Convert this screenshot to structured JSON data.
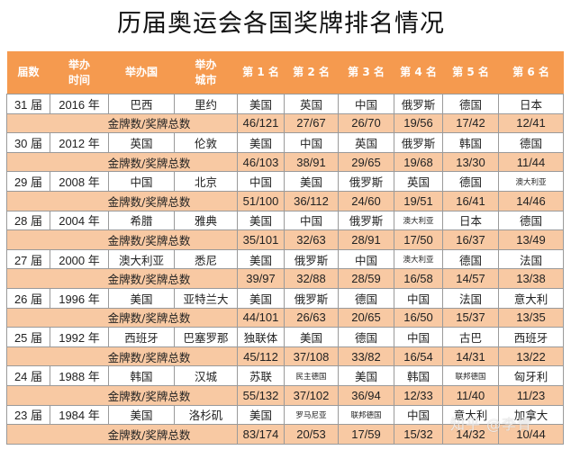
{
  "title": "历届奥运会各国奖牌排名情况",
  "headers": [
    "届数",
    "举办\n时间",
    "举办国",
    "举办\n城市",
    "第 1 名",
    "第 2 名",
    "第 3 名",
    "第 4 名",
    "第 5 名",
    "第 6 名"
  ],
  "header_lines": {
    "session": "届数",
    "time_1": "举办",
    "time_2": "时间",
    "country": "举办国",
    "city_1": "举办",
    "city_2": "城市",
    "rank1": "第 1 名",
    "rank2": "第 2 名",
    "rank3": "第 3 名",
    "rank4": "第 4 名",
    "rank5": "第 5 名",
    "rank6": "第 6 名"
  },
  "medal_label": "金牌数/奖牌总数",
  "colors": {
    "header_bg": "#f59a4f",
    "medal_row_bg": "#f8c9a3",
    "border": "#9a9a9a"
  },
  "games": [
    {
      "session": "31 届",
      "year": "2016 年",
      "host_country": "巴西",
      "host_city": "里约",
      "ranking": [
        "美国",
        "英国",
        "中国",
        "俄罗斯",
        "德国",
        "日本"
      ],
      "medals": [
        "46/121",
        "27/67",
        "26/70",
        "19/56",
        "17/42",
        "12/41"
      ]
    },
    {
      "session": "30 届",
      "year": "2012 年",
      "host_country": "英国",
      "host_city": "伦敦",
      "ranking": [
        "美国",
        "中国",
        "英国",
        "俄罗斯",
        "韩国",
        "德国"
      ],
      "medals": [
        "46/103",
        "38/91",
        "29/65",
        "19/68",
        "13/30",
        "11/44"
      ]
    },
    {
      "session": "29 届",
      "year": "2008 年",
      "host_country": "中国",
      "host_city": "北京",
      "ranking": [
        "中国",
        "美国",
        "俄罗斯",
        "英国",
        "德国",
        "澳大利亚"
      ],
      "medals": [
        "51/100",
        "36/112",
        "24/60",
        "19/51",
        "16/41",
        "14/46"
      ]
    },
    {
      "session": "28 届",
      "year": "2004 年",
      "host_country": "希腊",
      "host_city": "雅典",
      "ranking": [
        "美国",
        "中国",
        "俄罗斯",
        "澳大利亚",
        "日本",
        "德国"
      ],
      "medals": [
        "35/101",
        "32/63",
        "28/91",
        "17/50",
        "16/37",
        "13/49"
      ]
    },
    {
      "session": "27 届",
      "year": "2000 年",
      "host_country": "澳大利亚",
      "host_city": "悉尼",
      "ranking": [
        "美国",
        "俄罗斯",
        "中国",
        "澳大利亚",
        "德国",
        "法国"
      ],
      "medals": [
        "39/97",
        "32/88",
        "28/59",
        "16/58",
        "14/57",
        "13/38"
      ]
    },
    {
      "session": "26 届",
      "year": "1996 年",
      "host_country": "美国",
      "host_city": "亚特兰大",
      "ranking": [
        "美国",
        "俄罗斯",
        "德国",
        "中国",
        "法国",
        "意大利"
      ],
      "medals": [
        "44/101",
        "26/63",
        "20/65",
        "16/50",
        "15/37",
        "13/35"
      ]
    },
    {
      "session": "25 届",
      "year": "1992 年",
      "host_country": "西班牙",
      "host_city": "巴塞罗那",
      "ranking": [
        "独联体",
        "美国",
        "德国",
        "中国",
        "古巴",
        "西班牙"
      ],
      "medals": [
        "45/112",
        "37/108",
        "33/82",
        "16/54",
        "14/31",
        "13/22"
      ]
    },
    {
      "session": "24 届",
      "year": "1988 年",
      "host_country": "韩国",
      "host_city": "汉城",
      "ranking": [
        "苏联",
        "民主德国",
        "美国",
        "韩国",
        "联邦德国",
        "匈牙利"
      ],
      "medals": [
        "55/132",
        "37/102",
        "36/94",
        "12/33",
        "11/40",
        "11/23"
      ]
    },
    {
      "session": "23 届",
      "year": "1984 年",
      "host_country": "美国",
      "host_city": "洛杉矶",
      "ranking": [
        "美国",
        "罗马尼亚",
        "联邦德国",
        "中国",
        "意大利",
        "加拿大"
      ],
      "medals": [
        "83/174",
        "20/53",
        "17/59",
        "15/32",
        "14/32",
        "10/44"
      ]
    }
  ],
  "watermark": "知乎 @李青"
}
